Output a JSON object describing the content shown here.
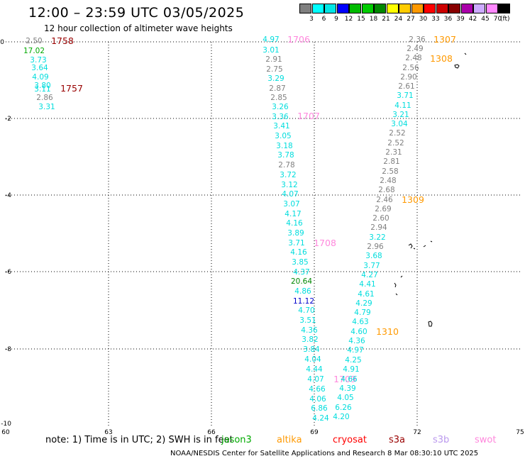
{
  "title": "12:00 – 23:59 UTC 03/05/2025",
  "subtitle": "12 hour collection of altimeter wave heights",
  "scale": {
    "colors": [
      "#808080",
      "#00ffff",
      "#00e5e5",
      "#0000ff",
      "#00bb00",
      "#00cc00",
      "#008800",
      "#ffff00",
      "#ffcc00",
      "#ff9900",
      "#ff0000",
      "#cc0000",
      "#880000",
      "#aa00aa",
      "#ccaaff",
      "#ff88ff",
      "#000000"
    ],
    "labels": [
      "3",
      "6",
      "9",
      "12",
      "15",
      "18",
      "21",
      "24",
      "27",
      "30",
      "33",
      "36",
      "39",
      "42",
      "45",
      "70",
      "(ft)"
    ]
  },
  "axes": {
    "x_ticks": [
      "60",
      "63",
      "66",
      "69",
      "72",
      "75"
    ],
    "y_ticks": [
      "0",
      "-2",
      "-4",
      "-6",
      "-8",
      "-10"
    ]
  },
  "note": "note: 1) Time is in UTC; 2) SWH is in feet",
  "legend": {
    "jason3": {
      "label": "jason3",
      "color": "#00aa00"
    },
    "altika": {
      "label": "altika",
      "color": "#ff9900"
    },
    "cryosat": {
      "label": "cryosat",
      "color": "#ff0000"
    },
    "s3a": {
      "label": "s3a",
      "color": "#990000"
    },
    "s3b": {
      "label": "s3b",
      "color": "#bb99ee"
    },
    "swot": {
      "label": "swot",
      "color": "#ff88dd"
    }
  },
  "credit": "NOAA/NESDIS Center for Satellite Applications and Research   8 Mar 08:30:10 UTC 2025",
  "track_left": {
    "values": [
      {
        "v": "2.50",
        "c": "#808080"
      },
      {
        "v": "17.02",
        "c": "#00aa00"
      },
      {
        "v": "3.73",
        "c": "#00dddd"
      },
      {
        "v": "3.64",
        "c": "#00dddd"
      },
      {
        "v": "4.09",
        "c": "#00dddd"
      },
      {
        "v": "3.80",
        "c": "#00dddd"
      },
      {
        "v": "3.11",
        "c": "#00dddd"
      },
      {
        "v": "2.86",
        "c": "#808080"
      },
      {
        "v": "3.31",
        "c": "#00dddd"
      }
    ],
    "times": [
      {
        "t": "1758",
        "c": "#990000"
      },
      {
        "t": "1757",
        "c": "#990000"
      }
    ]
  },
  "track_mid": {
    "values": [
      {
        "v": "4.97",
        "c": "#00dddd"
      },
      {
        "v": "3.01",
        "c": "#00dddd"
      },
      {
        "v": "2.91",
        "c": "#808080"
      },
      {
        "v": "2.75",
        "c": "#808080"
      },
      {
        "v": "3.29",
        "c": "#00dddd"
      },
      {
        "v": "2.87",
        "c": "#808080"
      },
      {
        "v": "2.85",
        "c": "#808080"
      },
      {
        "v": "3.26",
        "c": "#00dddd"
      },
      {
        "v": "3.36",
        "c": "#00dddd"
      },
      {
        "v": "3.41",
        "c": "#00dddd"
      },
      {
        "v": "3.05",
        "c": "#00dddd"
      },
      {
        "v": "3.18",
        "c": "#00dddd"
      },
      {
        "v": "3.78",
        "c": "#00dddd"
      },
      {
        "v": "2.78",
        "c": "#808080"
      },
      {
        "v": "3.72",
        "c": "#00dddd"
      },
      {
        "v": "3.12",
        "c": "#00dddd"
      },
      {
        "v": "4.07",
        "c": "#00dddd"
      },
      {
        "v": "3.07",
        "c": "#00dddd"
      },
      {
        "v": "4.17",
        "c": "#00dddd"
      },
      {
        "v": "4.16",
        "c": "#00dddd"
      },
      {
        "v": "3.89",
        "c": "#00dddd"
      },
      {
        "v": "3.71",
        "c": "#00dddd"
      },
      {
        "v": "4.16",
        "c": "#00dddd"
      },
      {
        "v": "3.85",
        "c": "#00dddd"
      },
      {
        "v": "4.37",
        "c": "#00dddd"
      },
      {
        "v": "20.64",
        "c": "#008800"
      },
      {
        "v": "4.86",
        "c": "#00dddd"
      },
      {
        "v": "11.12",
        "c": "#0000cc"
      },
      {
        "v": "4.70",
        "c": "#00dddd"
      },
      {
        "v": "3.51",
        "c": "#00dddd"
      },
      {
        "v": "4.36",
        "c": "#00dddd"
      },
      {
        "v": "3.82",
        "c": "#00dddd"
      },
      {
        "v": "3.84",
        "c": "#00dddd"
      },
      {
        "v": "4.04",
        "c": "#00dddd"
      },
      {
        "v": "4.44",
        "c": "#00dddd"
      },
      {
        "v": "4.07",
        "c": "#00dddd"
      },
      {
        "v": "4.66",
        "c": "#00dddd"
      },
      {
        "v": "4.06",
        "c": "#00dddd"
      },
      {
        "v": "6.86",
        "c": "#00dddd"
      },
      {
        "v": "4.24",
        "c": "#00dddd"
      }
    ],
    "times": [
      {
        "t": "1706",
        "c": "#ff88dd"
      },
      {
        "t": "1707",
        "c": "#ff88dd"
      },
      {
        "t": "1708",
        "c": "#ff88dd"
      },
      {
        "t": "1709",
        "c": "#ff88dd"
      }
    ]
  },
  "track_right": {
    "values": [
      {
        "v": "2.36",
        "c": "#808080"
      },
      {
        "v": "2.49",
        "c": "#808080"
      },
      {
        "v": "2.48",
        "c": "#808080"
      },
      {
        "v": "2.56",
        "c": "#808080"
      },
      {
        "v": "2.90",
        "c": "#808080"
      },
      {
        "v": "2.61",
        "c": "#808080"
      },
      {
        "v": "3.71",
        "c": "#00dddd"
      },
      {
        "v": "4.11",
        "c": "#00dddd"
      },
      {
        "v": "3.21",
        "c": "#00dddd"
      },
      {
        "v": "3.04",
        "c": "#00dddd"
      },
      {
        "v": "2.52",
        "c": "#808080"
      },
      {
        "v": "2.52",
        "c": "#808080"
      },
      {
        "v": "2.31",
        "c": "#808080"
      },
      {
        "v": "2.81",
        "c": "#808080"
      },
      {
        "v": "2.58",
        "c": "#808080"
      },
      {
        "v": "2.48",
        "c": "#808080"
      },
      {
        "v": "2.68",
        "c": "#808080"
      },
      {
        "v": "2.46",
        "c": "#808080"
      },
      {
        "v": "2.69",
        "c": "#808080"
      },
      {
        "v": "2.60",
        "c": "#808080"
      },
      {
        "v": "2.94",
        "c": "#808080"
      },
      {
        "v": "3.22",
        "c": "#00dddd"
      },
      {
        "v": "2.96",
        "c": "#808080"
      },
      {
        "v": "3.68",
        "c": "#00dddd"
      },
      {
        "v": "3.77",
        "c": "#00dddd"
      },
      {
        "v": "4.27",
        "c": "#00dddd"
      },
      {
        "v": "4.41",
        "c": "#00dddd"
      },
      {
        "v": "4.61",
        "c": "#00dddd"
      },
      {
        "v": "4.29",
        "c": "#00dddd"
      },
      {
        "v": "4.79",
        "c": "#00dddd"
      },
      {
        "v": "4.63",
        "c": "#00dddd"
      },
      {
        "v": "4.60",
        "c": "#00dddd"
      },
      {
        "v": "4.36",
        "c": "#00dddd"
      },
      {
        "v": "4.97",
        "c": "#00dddd"
      },
      {
        "v": "4.25",
        "c": "#00dddd"
      },
      {
        "v": "4.91",
        "c": "#00dddd"
      },
      {
        "v": "4.66",
        "c": "#00dddd"
      },
      {
        "v": "4.39",
        "c": "#00dddd"
      },
      {
        "v": "4.05",
        "c": "#00dddd"
      },
      {
        "v": "6.26",
        "c": "#00dddd"
      },
      {
        "v": "4.20",
        "c": "#00dddd"
      }
    ],
    "times": [
      {
        "t": "1307",
        "c": "#ff9900"
      },
      {
        "t": "1308",
        "c": "#ff9900"
      },
      {
        "t": "1309",
        "c": "#ff9900"
      },
      {
        "t": "1310",
        "c": "#ff9900"
      }
    ]
  }
}
